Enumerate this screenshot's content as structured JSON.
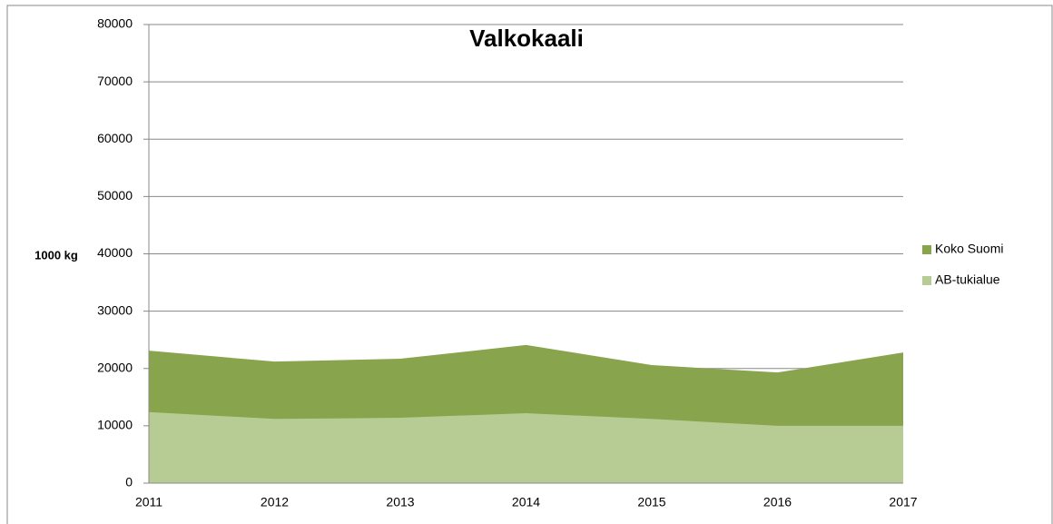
{
  "chart_data": {
    "type": "area",
    "title": "Valkokaali",
    "y_label": "1000 kg",
    "categories": [
      "2011",
      "2012",
      "2013",
      "2014",
      "2015",
      "2016",
      "2017"
    ],
    "series": [
      {
        "name": "Koko Suomi",
        "color": "#88a44d",
        "values": [
          23100,
          21200,
          21700,
          24100,
          20600,
          19300,
          22800
        ]
      },
      {
        "name": "AB-tukialue",
        "color": "#b7cc94",
        "values": [
          12400,
          11200,
          11400,
          12200,
          11200,
          10000,
          10000
        ]
      }
    ],
    "ylim": [
      0,
      80000
    ],
    "yticks": [
      0,
      10000,
      20000,
      30000,
      40000,
      50000,
      60000,
      70000,
      80000
    ],
    "grid": true,
    "legend": "right"
  }
}
